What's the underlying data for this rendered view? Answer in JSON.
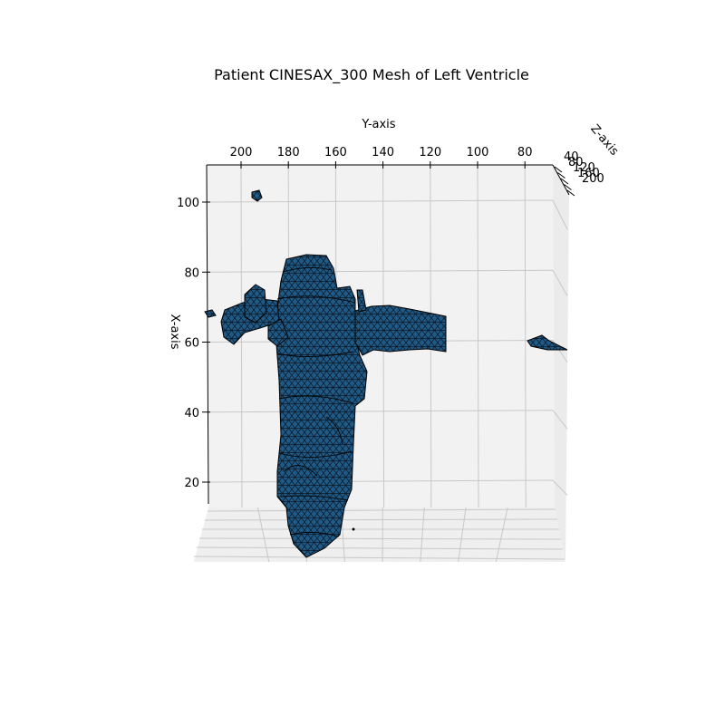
{
  "chart_data": {
    "type": "surface3d",
    "title": "Patient CINESAX_300 Mesh of Left Ventricle",
    "xlabel": "X-axis",
    "ylabel": "Y-axis",
    "zlabel": "Z-axis",
    "y_ticks": [
      "200",
      "180",
      "160",
      "140",
      "120",
      "100",
      "80"
    ],
    "x_ticks": [
      "100",
      "80",
      "60",
      "40",
      "20"
    ],
    "z_ticks": [
      "40",
      "80",
      "120",
      "160",
      "200"
    ],
    "ylim": [
      216,
      70
    ],
    "xlim": [
      12,
      110
    ],
    "grid": true,
    "colors": {
      "face": "#1f77b4",
      "edge": "#000000",
      "pane": "#f2f2f2",
      "grid": "#c8c8c8"
    }
  }
}
